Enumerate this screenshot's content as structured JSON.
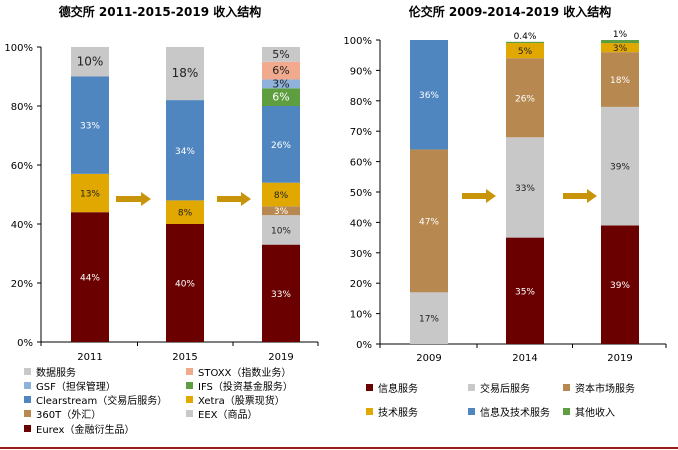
{
  "chart_data": [
    {
      "type": "bar",
      "stacked": true,
      "title": "德交所 2011-2015-2019 收入结构",
      "categories": [
        "2011",
        "2015",
        "2019"
      ],
      "ylim": [
        0,
        100
      ],
      "yticks": [
        "0%",
        "20%",
        "40%",
        "60%",
        "80%",
        "100%"
      ],
      "series": [
        {
          "name": "Eurex（金融衍生品）",
          "color": "#6b0000",
          "values": [
            44,
            40,
            33
          ],
          "labels": [
            "44%",
            "40%",
            "33%"
          ]
        },
        {
          "name": "EEX（商品）",
          "color": "#c8c8c8",
          "values": [
            0,
            0,
            10
          ],
          "labels": [
            "",
            "",
            "10%"
          ]
        },
        {
          "name": "360T（外汇）",
          "color": "#b78850",
          "values": [
            0,
            0,
            3
          ],
          "labels": [
            "",
            "",
            "3%"
          ]
        },
        {
          "name": "Xetra（股票现货）",
          "color": "#e0a800",
          "values": [
            13,
            8,
            8
          ],
          "labels": [
            "13%",
            "8%",
            "8%"
          ]
        },
        {
          "name": "Clearstream（交易后服务）",
          "color": "#4f86c0",
          "values": [
            33,
            34,
            26
          ],
          "labels": [
            "33%",
            "34%",
            "26%"
          ]
        },
        {
          "name": "IFS（投资基金服务）",
          "color": "#5e9e40",
          "values": [
            0,
            0,
            6
          ],
          "labels": [
            "",
            "",
            "6%"
          ]
        },
        {
          "name": "GSF（担保管理）",
          "color": "#8fb2dc",
          "values": [
            0,
            0,
            3
          ],
          "labels": [
            "",
            "",
            "3%"
          ]
        },
        {
          "name": "STOXX（指数业务）",
          "color": "#f2aa8e",
          "values": [
            0,
            0,
            6
          ],
          "labels": [
            "",
            "",
            "6%"
          ]
        },
        {
          "name": "数据服务",
          "color": "#c8c8c8",
          "values": [
            10,
            18,
            5
          ],
          "labels": [
            "10%",
            "18%",
            "5%"
          ]
        }
      ],
      "legend": [
        "数据服务",
        "STOXX（指数业务）",
        "GSF（担保管理）",
        "IFS（投资基金服务）",
        "Clearstream（交易后服务）",
        "Xetra（股票现货）",
        "360T（外汇）",
        "EEX（商品）",
        "Eurex（金融衍生品）"
      ],
      "legend_colors": [
        "#c8c8c8",
        "#f2aa8e",
        "#8fb2dc",
        "#5e9e40",
        "#4f86c0",
        "#e0a800",
        "#b78850",
        "#c8c8c8",
        "#6b0000"
      ],
      "legend_position": "bottom"
    },
    {
      "type": "bar",
      "stacked": true,
      "title": "伦交所 2009-2014-2019 收入结构",
      "categories": [
        "2009",
        "2014",
        "2019"
      ],
      "ylim": [
        0,
        100
      ],
      "yticks": [
        "0%",
        "10%",
        "20%",
        "30%",
        "40%",
        "50%",
        "60%",
        "70%",
        "80%",
        "90%",
        "100%"
      ],
      "series": [
        {
          "name": "信息服务",
          "color": "#6b0000",
          "values": [
            0,
            35,
            39
          ],
          "labels": [
            "",
            "35%",
            "39%"
          ]
        },
        {
          "name": "交易后服务",
          "color": "#c8c8c8",
          "values": [
            17,
            33,
            39
          ],
          "labels": [
            "17%",
            "33%",
            "39%"
          ]
        },
        {
          "name": "资本市场服务",
          "color": "#b78850",
          "values": [
            47,
            26,
            18
          ],
          "labels": [
            "47%",
            "26%",
            "18%"
          ]
        },
        {
          "name": "技术服务",
          "color": "#e0a800",
          "values": [
            0,
            5,
            3
          ],
          "labels": [
            "",
            "5%",
            "3%"
          ]
        },
        {
          "name": "信息及技术服务",
          "color": "#4f86c0",
          "values": [
            36,
            0,
            0
          ],
          "labels": [
            "36%",
            "",
            ""
          ]
        },
        {
          "name": "其他收入",
          "color": "#5e9e40",
          "values": [
            0,
            0.4,
            1
          ],
          "labels": [
            "",
            "0.4%",
            "1%"
          ]
        }
      ],
      "legend": [
        "信息服务",
        "交易后服务",
        "资本市场服务",
        "技术服务",
        "信息及技术服务",
        "其他收入"
      ],
      "legend_colors": [
        "#6b0000",
        "#c8c8c8",
        "#b78850",
        "#e0a800",
        "#4f86c0",
        "#5e9e40"
      ],
      "legend_position": "bottom"
    }
  ],
  "colors": {
    "arrow": "#c8950a",
    "axis": "#000000",
    "divider": "#9b1b1b"
  }
}
